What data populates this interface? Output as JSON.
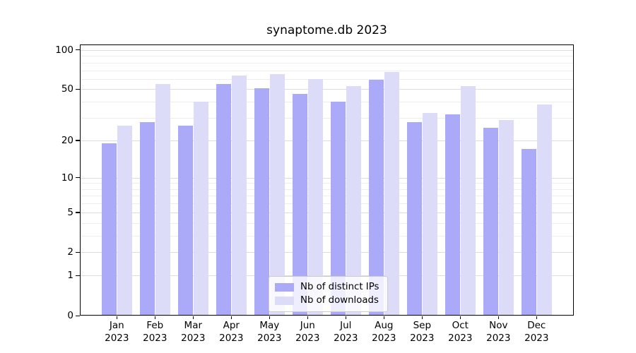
{
  "chart_data": {
    "type": "bar",
    "title": "synaptome.db 2023",
    "categories": [
      "Jan",
      "Feb",
      "Mar",
      "Apr",
      "May",
      "Jun",
      "Jul",
      "Aug",
      "Sep",
      "Oct",
      "Nov",
      "Dec"
    ],
    "year_label": "2023",
    "series": [
      {
        "name": "Nb of distinct IPs",
        "color": "#aaaaf8",
        "values": [
          19,
          28,
          26,
          55,
          51,
          46,
          40,
          59,
          28,
          32,
          25,
          17
        ]
      },
      {
        "name": "Nb of downloads",
        "color": "#dcdcf8",
        "values": [
          26,
          55,
          40,
          64,
          65,
          60,
          53,
          68,
          33,
          53,
          29,
          38
        ]
      }
    ],
    "yscale": "log1p",
    "ylim": [
      0,
      100
    ],
    "y_major_ticks": [
      0,
      1,
      2,
      5,
      10,
      20,
      50,
      100
    ],
    "y_minor_ticks": [
      3,
      4,
      6,
      7,
      8,
      9,
      30,
      40,
      60,
      70,
      80,
      90
    ],
    "grid": true,
    "legend_position": "lower-center-inside",
    "xlabel": "",
    "ylabel": ""
  }
}
